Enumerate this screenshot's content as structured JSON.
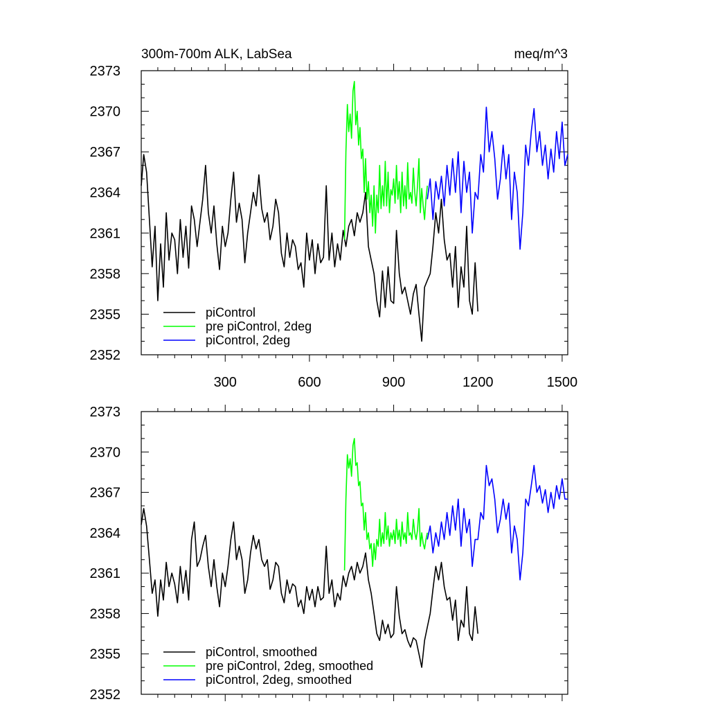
{
  "figure": {
    "title": "300m-700m ALK, LabSea",
    "units": "meq/m^3"
  },
  "chart_data": [
    {
      "type": "line",
      "title": "300m-700m ALK, LabSea",
      "units": "meq/m^3",
      "xlim": [
        1,
        1520
      ],
      "ylim": [
        2352,
        2373
      ],
      "xticks": [
        300,
        600,
        900,
        1200,
        1500
      ],
      "xtick_labels": [
        "300",
        "600",
        "900",
        "1200",
        "1500"
      ],
      "yticks": [
        2352,
        2355,
        2358,
        2361,
        2364,
        2367,
        2370,
        2373
      ],
      "ytick_labels": [
        "2352",
        "2355",
        "2358",
        "2361",
        "2364",
        "2367",
        "2370",
        "2373"
      ],
      "legend_position": "bottom-left",
      "series": [
        {
          "name": "piControl",
          "color": "#000000",
          "x": [
            1,
            10,
            20,
            30,
            40,
            50,
            60,
            70,
            80,
            90,
            100,
            110,
            120,
            130,
            140,
            150,
            160,
            170,
            180,
            190,
            200,
            210,
            220,
            230,
            240,
            250,
            260,
            270,
            280,
            290,
            300,
            310,
            320,
            330,
            340,
            350,
            360,
            370,
            380,
            390,
            400,
            410,
            420,
            430,
            440,
            450,
            460,
            470,
            480,
            490,
            500,
            510,
            520,
            530,
            540,
            550,
            560,
            570,
            580,
            590,
            600,
            610,
            620,
            630,
            640,
            650,
            660,
            670,
            680,
            690,
            700,
            710,
            720,
            730,
            740,
            750,
            760,
            770,
            780,
            790,
            800,
            810,
            820,
            830,
            840,
            850,
            860,
            870,
            880,
            890,
            900,
            910,
            920,
            930,
            940,
            950,
            960,
            970,
            980,
            990,
            1000,
            1010,
            1020,
            1030,
            1040,
            1050,
            1060,
            1070,
            1080,
            1090,
            1100,
            1110,
            1120,
            1130,
            1140,
            1150,
            1160,
            1170,
            1180,
            1190,
            1200
          ],
          "y": [
            2364.5,
            2366.8,
            2365.5,
            2362.0,
            2358.5,
            2361.5,
            2356.0,
            2360.2,
            2357.0,
            2362.5,
            2359.0,
            2361.0,
            2360.5,
            2358.0,
            2362.0,
            2359.2,
            2361.5,
            2358.4,
            2363.0,
            2362.0,
            2360.0,
            2361.8,
            2363.5,
            2366.0,
            2362.5,
            2361.0,
            2363.0,
            2360.2,
            2358.3,
            2361.5,
            2360.0,
            2361.0,
            2363.5,
            2365.5,
            2361.8,
            2363.2,
            2362.0,
            2358.8,
            2361.0,
            2362.5,
            2364.0,
            2363.0,
            2365.3,
            2362.8,
            2361.8,
            2362.5,
            2360.5,
            2361.5,
            2363.5,
            2362.5,
            2359.5,
            2358.5,
            2361.0,
            2359.2,
            2360.5,
            2360.0,
            2358.3,
            2358.8,
            2357.0,
            2361.0,
            2359.0,
            2360.5,
            2358.0,
            2360.2,
            2358.8,
            2359.2,
            2364.5,
            2359.0,
            2361.0,
            2358.5,
            2360.2,
            2359.0,
            2361.2,
            2360.0,
            2361.5,
            2362.0,
            2360.8,
            2362.5,
            2361.8,
            2362.5,
            2364.0,
            2360.0,
            2359.0,
            2358.0,
            2356.0,
            2354.8,
            2358.2,
            2355.5,
            2358.5,
            2356.0,
            2355.8,
            2361.2,
            2358.0,
            2356.5,
            2357.0,
            2356.0,
            2355.0,
            2356.5,
            2357.2,
            2355.0,
            2353.0,
            2357.0,
            2357.5,
            2358.0,
            2360.0,
            2362.5,
            2361.0,
            2363.5,
            2360.5,
            2359.0,
            2359.5,
            2357.0,
            2360.0,
            2355.5,
            2358.5,
            2357.0,
            2361.5,
            2356.0,
            2355.0,
            2358.8,
            2355.2
          ]
        },
        {
          "name": "pre piControl, 2deg",
          "color": "#00ff00",
          "x": [
            725,
            730,
            735,
            740,
            745,
            750,
            755,
            760,
            765,
            770,
            775,
            780,
            785,
            790,
            795,
            800,
            805,
            810,
            815,
            820,
            825,
            830,
            835,
            840,
            845,
            850,
            855,
            860,
            865,
            870,
            875,
            880,
            885,
            890,
            895,
            900,
            905,
            910,
            915,
            920,
            925,
            930,
            935,
            940,
            945,
            950,
            955,
            960,
            965,
            970,
            975,
            980,
            985,
            990,
            995,
            1000,
            1005,
            1010,
            1015,
            1020
          ],
          "y": [
            2360.5,
            2367.0,
            2370.5,
            2368.5,
            2369.8,
            2368.0,
            2371.5,
            2372.2,
            2369.0,
            2370.0,
            2367.5,
            2368.8,
            2366.5,
            2367.2,
            2364.0,
            2366.5,
            2363.5,
            2364.8,
            2362.5,
            2363.8,
            2361.5,
            2364.5,
            2361.0,
            2363.8,
            2362.5,
            2366.0,
            2362.8,
            2364.5,
            2363.0,
            2366.3,
            2363.0,
            2365.5,
            2362.5,
            2364.2,
            2363.8,
            2365.0,
            2363.2,
            2366.0,
            2363.5,
            2364.8,
            2362.5,
            2365.5,
            2363.0,
            2364.5,
            2362.8,
            2366.2,
            2363.5,
            2364.0,
            2363.2,
            2365.8,
            2364.0,
            2363.0,
            2364.5,
            2366.5,
            2362.5,
            2364.3,
            2363.0,
            2362.0,
            2363.5,
            2364.5
          ]
        },
        {
          "name": "piControl, 2deg",
          "color": "#0000ff",
          "x": [
            1020,
            1030,
            1040,
            1050,
            1060,
            1070,
            1080,
            1090,
            1100,
            1110,
            1120,
            1130,
            1140,
            1150,
            1160,
            1170,
            1180,
            1190,
            1200,
            1210,
            1220,
            1230,
            1240,
            1250,
            1260,
            1270,
            1280,
            1290,
            1300,
            1310,
            1320,
            1330,
            1340,
            1350,
            1360,
            1370,
            1380,
            1390,
            1400,
            1410,
            1420,
            1430,
            1440,
            1450,
            1460,
            1470,
            1480,
            1490,
            1500,
            1510,
            1520
          ],
          "y": [
            2363.5,
            2365.0,
            2362.0,
            2364.8,
            2363.5,
            2365.2,
            2363.0,
            2366.0,
            2363.8,
            2366.5,
            2364.0,
            2367.0,
            2362.5,
            2366.3,
            2364.0,
            2365.5,
            2361.0,
            2364.0,
            2363.5,
            2366.8,
            2365.5,
            2370.3,
            2367.0,
            2368.5,
            2366.5,
            2363.5,
            2365.0,
            2367.5,
            2365.0,
            2366.8,
            2362.0,
            2365.5,
            2364.0,
            2359.8,
            2362.5,
            2367.5,
            2366.0,
            2368.5,
            2370.2,
            2367.0,
            2368.5,
            2366.0,
            2367.5,
            2365.0,
            2367.2,
            2365.5,
            2368.5,
            2366.5,
            2369.2,
            2366.0,
            2366.8
          ]
        }
      ]
    },
    {
      "type": "line",
      "xlim": [
        1,
        1520
      ],
      "ylim": [
        2352,
        2373
      ],
      "xticks": [
        300,
        600,
        900,
        1200,
        1500
      ],
      "yticks": [
        2352,
        2355,
        2358,
        2361,
        2364,
        2367,
        2370,
        2373
      ],
      "ytick_labels": [
        "2352",
        "2355",
        "2358",
        "2361",
        "2364",
        "2367",
        "2370",
        "2373"
      ],
      "legend_position": "bottom-left",
      "series": [
        {
          "name": "piControl, smoothed",
          "color": "#000000",
          "x": [
            1,
            10,
            20,
            30,
            40,
            50,
            60,
            70,
            80,
            90,
            100,
            110,
            120,
            130,
            140,
            150,
            160,
            170,
            180,
            190,
            200,
            210,
            220,
            230,
            240,
            250,
            260,
            270,
            280,
            290,
            300,
            310,
            320,
            330,
            340,
            350,
            360,
            370,
            380,
            390,
            400,
            410,
            420,
            430,
            440,
            450,
            460,
            470,
            480,
            490,
            500,
            510,
            520,
            530,
            540,
            550,
            560,
            570,
            580,
            590,
            600,
            610,
            620,
            630,
            640,
            650,
            660,
            670,
            680,
            690,
            700,
            710,
            720,
            730,
            740,
            750,
            760,
            770,
            780,
            790,
            800,
            810,
            820,
            830,
            840,
            850,
            860,
            870,
            880,
            890,
            900,
            910,
            920,
            930,
            940,
            950,
            960,
            970,
            980,
            990,
            1000,
            1010,
            1020,
            1030,
            1040,
            1050,
            1060,
            1070,
            1080,
            1090,
            1100,
            1110,
            1120,
            1130,
            1140,
            1150,
            1160,
            1170,
            1180,
            1190,
            1200
          ],
          "y": [
            2364.6,
            2365.8,
            2364.5,
            2362.0,
            2359.5,
            2360.5,
            2357.8,
            2360.5,
            2359.0,
            2361.8,
            2360.0,
            2361.0,
            2360.2,
            2358.8,
            2361.5,
            2359.5,
            2361.2,
            2359.0,
            2363.5,
            2364.8,
            2361.5,
            2362.0,
            2363.0,
            2363.8,
            2361.5,
            2360.0,
            2362.0,
            2360.0,
            2358.5,
            2361.0,
            2360.0,
            2361.5,
            2363.5,
            2364.8,
            2362.0,
            2363.0,
            2362.0,
            2359.5,
            2360.5,
            2362.5,
            2363.8,
            2362.8,
            2363.5,
            2362.0,
            2361.5,
            2362.0,
            2359.8,
            2360.5,
            2361.8,
            2361.5,
            2359.5,
            2358.8,
            2360.5,
            2359.5,
            2360.2,
            2360.0,
            2358.5,
            2359.0,
            2358.0,
            2360.0,
            2359.0,
            2359.8,
            2358.5,
            2360.0,
            2359.0,
            2359.2,
            2363.0,
            2359.5,
            2360.5,
            2358.5,
            2359.5,
            2359.0,
            2360.8,
            2360.0,
            2361.0,
            2361.5,
            2360.5,
            2361.8,
            2361.0,
            2361.5,
            2362.5,
            2360.5,
            2359.5,
            2358.0,
            2356.5,
            2356.0,
            2357.5,
            2356.5,
            2357.2,
            2356.2,
            2356.5,
            2360.0,
            2357.8,
            2356.5,
            2356.8,
            2356.0,
            2355.5,
            2356.2,
            2356.0,
            2355.0,
            2354.0,
            2356.0,
            2357.0,
            2358.0,
            2359.8,
            2361.5,
            2360.5,
            2361.8,
            2360.0,
            2359.0,
            2359.2,
            2357.5,
            2359.0,
            2356.0,
            2357.5,
            2357.0,
            2360.0,
            2356.5,
            2356.0,
            2358.5,
            2356.5
          ]
        },
        {
          "name": "pre piControl, 2deg, smoothed",
          "color": "#00ff00",
          "x": [
            725,
            730,
            735,
            740,
            745,
            750,
            755,
            760,
            765,
            770,
            775,
            780,
            785,
            790,
            795,
            800,
            805,
            810,
            815,
            820,
            825,
            830,
            835,
            840,
            845,
            850,
            855,
            860,
            865,
            870,
            875,
            880,
            885,
            890,
            895,
            900,
            905,
            910,
            915,
            920,
            925,
            930,
            935,
            940,
            945,
            950,
            955,
            960,
            965,
            970,
            975,
            980,
            985,
            990,
            995,
            1000,
            1005,
            1010,
            1015,
            1020
          ],
          "y": [
            2361.2,
            2366.5,
            2369.8,
            2368.8,
            2369.5,
            2368.2,
            2370.5,
            2371.0,
            2369.0,
            2369.2,
            2367.5,
            2367.8,
            2366.0,
            2366.2,
            2364.2,
            2365.5,
            2363.5,
            2364.0,
            2362.8,
            2363.2,
            2361.5,
            2363.2,
            2362.0,
            2363.5,
            2363.0,
            2365.0,
            2363.0,
            2364.0,
            2363.2,
            2365.5,
            2363.5,
            2364.5,
            2363.0,
            2364.0,
            2363.5,
            2364.2,
            2363.2,
            2365.0,
            2363.5,
            2364.2,
            2363.0,
            2364.8,
            2363.5,
            2364.0,
            2363.2,
            2365.5,
            2363.8,
            2364.0,
            2363.5,
            2365.0,
            2364.0,
            2363.5,
            2364.2,
            2365.8,
            2363.0,
            2364.0,
            2363.2,
            2362.8,
            2363.5,
            2364.0
          ]
        },
        {
          "name": "piControl, 2deg, smoothed",
          "color": "#0000ff",
          "x": [
            1020,
            1030,
            1040,
            1050,
            1060,
            1070,
            1080,
            1090,
            1100,
            1110,
            1120,
            1130,
            1140,
            1150,
            1160,
            1170,
            1180,
            1190,
            1200,
            1210,
            1220,
            1230,
            1240,
            1250,
            1260,
            1270,
            1280,
            1290,
            1300,
            1310,
            1320,
            1330,
            1340,
            1350,
            1360,
            1370,
            1380,
            1390,
            1400,
            1410,
            1420,
            1430,
            1440,
            1450,
            1460,
            1470,
            1480,
            1490,
            1500,
            1510,
            1520
          ],
          "y": [
            2363.5,
            2364.5,
            2362.5,
            2364.0,
            2363.0,
            2364.8,
            2363.5,
            2365.5,
            2363.8,
            2366.0,
            2364.2,
            2366.5,
            2363.0,
            2365.8,
            2364.0,
            2365.0,
            2361.5,
            2363.5,
            2363.5,
            2365.5,
            2365.0,
            2369.0,
            2367.5,
            2368.0,
            2366.5,
            2364.0,
            2365.0,
            2366.5,
            2365.0,
            2366.2,
            2362.5,
            2364.5,
            2363.5,
            2360.5,
            2362.5,
            2366.5,
            2366.0,
            2367.5,
            2369.0,
            2367.0,
            2367.5,
            2366.2,
            2367.2,
            2365.5,
            2367.0,
            2365.8,
            2367.5,
            2366.5,
            2368.0,
            2366.5,
            2366.5
          ]
        }
      ]
    }
  ]
}
